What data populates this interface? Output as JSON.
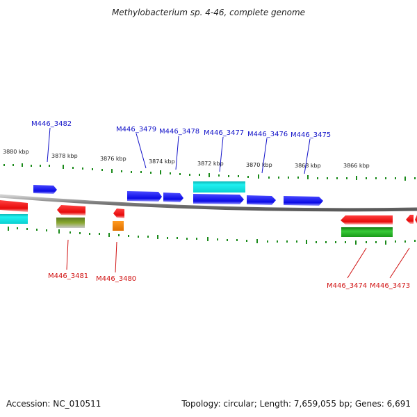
{
  "title": "Methylobacterium sp. 4-46, complete genome",
  "footer": {
    "accession": "Accession: NC_010511",
    "summary": "Topology: circular; Length: 7,659,055 bp; Genes: 6,691"
  },
  "colors": {
    "forward_gene": "#0a0ae6",
    "reverse_gene": "#e60a0a",
    "cyan_feature": "#12d8d8",
    "green_feature": "#22aa22",
    "orange_feature": "#ff8a00",
    "olive_feature": "#7a9a2a",
    "tick": "#1a8a1a",
    "backbone": "#8c8c8c",
    "label_forward": "#1010c8",
    "label_reverse": "#d01010"
  },
  "kbp_labels": [
    "3880 kbp",
    "3878 kbp",
    "3876 kbp",
    "3874 kbp",
    "3872 kbp",
    "3870 kbp",
    "3868 kbp",
    "3866 kbp"
  ],
  "genes_forward": [
    "M446_3482",
    "M446_3479",
    "M446_3478",
    "M446_3477",
    "M446_3476",
    "M446_3475"
  ],
  "genes_reverse": [
    "M446_3481",
    "M446_3480",
    "M446_3474",
    "M446_3473"
  ]
}
